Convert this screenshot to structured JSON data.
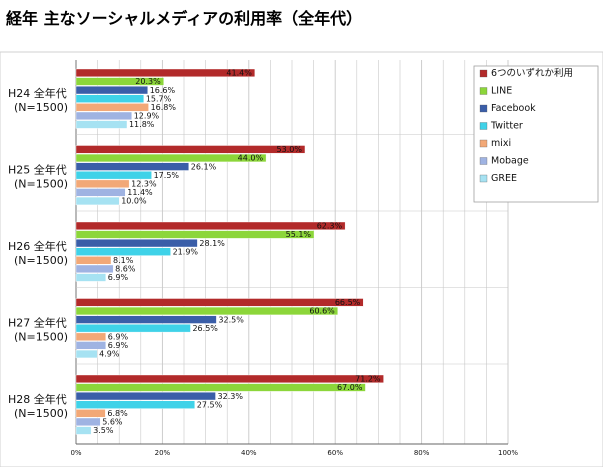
{
  "chart_data": {
    "type": "bar",
    "orientation": "horizontal",
    "title": "経年 主なソーシャルメディアの利用率（全年代）",
    "categories": [
      {
        "year": "H24 全年代",
        "n": "(N=1500)"
      },
      {
        "year": "H25 全年代",
        "n": "(N=1500)"
      },
      {
        "year": "H26 全年代",
        "n": "(N=1500)"
      },
      {
        "year": "H27 全年代",
        "n": "(N=1500)"
      },
      {
        "year": "H28 全年代",
        "n": "(N=1500)"
      }
    ],
    "series": [
      {
        "name": "6つのいずれか利用",
        "color": "#b22a2a",
        "label_color": "#ffffff",
        "values": [
          41.4,
          53.0,
          62.3,
          66.5,
          71.2
        ]
      },
      {
        "name": "LINE",
        "color": "#8cd63a",
        "label_color": "#111111",
        "values": [
          20.3,
          44.0,
          55.1,
          60.6,
          67.0
        ]
      },
      {
        "name": "Facebook",
        "color": "#3a5ea8",
        "label_color": "#111111",
        "values": [
          16.6,
          26.1,
          28.1,
          32.5,
          32.3
        ]
      },
      {
        "name": "Twitter",
        "color": "#3fd2e8",
        "label_color": "#111111",
        "values": [
          15.7,
          17.5,
          21.9,
          26.5,
          27.5
        ]
      },
      {
        "name": "mixi",
        "color": "#f2a877",
        "label_color": "#111111",
        "values": [
          16.8,
          12.3,
          8.1,
          6.9,
          6.8
        ]
      },
      {
        "name": "Mobage",
        "color": "#9fb3e2",
        "label_color": "#111111",
        "values": [
          12.9,
          11.4,
          8.6,
          6.9,
          5.6
        ]
      },
      {
        "name": "GREE",
        "color": "#a6e2f2",
        "label_color": "#111111",
        "values": [
          11.8,
          10.0,
          6.9,
          4.9,
          3.5
        ]
      }
    ],
    "value_suffix": "%",
    "xlim": [
      0,
      100
    ],
    "xticks": [
      "0%",
      "20%",
      "40%",
      "60%",
      "80%",
      "100%"
    ],
    "grid": true,
    "legend_position": "top-right"
  }
}
